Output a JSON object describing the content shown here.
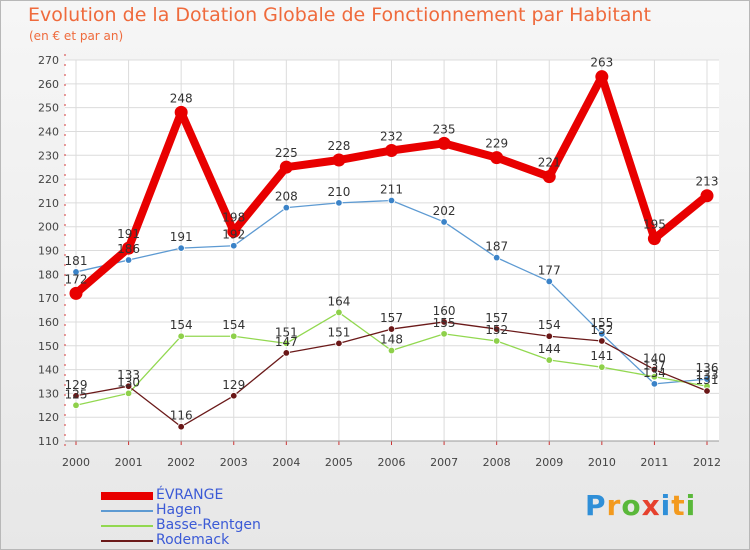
{
  "chart_data": {
    "type": "line",
    "title": "Evolution de la Dotation Globale de Fonctionnement par Habitant",
    "subtitle": "(en € et par an)",
    "xlabel": "",
    "ylabel": "",
    "ylim": [
      110,
      270
    ],
    "y_ticks": [
      110,
      120,
      130,
      140,
      150,
      160,
      170,
      180,
      190,
      200,
      210,
      220,
      230,
      240,
      250,
      260,
      270
    ],
    "categories": [
      "2000",
      "2001",
      "2002",
      "2003",
      "2004",
      "2005",
      "2006",
      "2007",
      "2008",
      "2009",
      "2010",
      "2011",
      "2012"
    ],
    "series": [
      {
        "name": "ÉVRANGE",
        "color": "#e80000",
        "values": [
          172,
          191,
          248,
          198,
          225,
          228,
          232,
          235,
          229,
          221,
          263,
          195,
          213
        ]
      },
      {
        "name": "Hagen",
        "color": "#5d9ad2",
        "values": [
          181,
          186,
          191,
          192,
          208,
          210,
          211,
          202,
          187,
          177,
          155,
          134,
          136
        ]
      },
      {
        "name": "Basse-Rentgen",
        "color": "#92d850",
        "values": [
          125,
          130,
          154,
          154,
          151,
          164,
          148,
          155,
          152,
          144,
          141,
          137,
          133
        ]
      },
      {
        "name": "Rodemack",
        "color": "#6b1a1a",
        "values": [
          129,
          133,
          116,
          129,
          147,
          151,
          157,
          160,
          157,
          154,
          152,
          140,
          131
        ]
      }
    ],
    "grid": true,
    "legend_position": "bottom-left"
  },
  "logo": {
    "parts": [
      "P",
      "r",
      "o",
      "x",
      "i",
      "t",
      "i"
    ]
  }
}
